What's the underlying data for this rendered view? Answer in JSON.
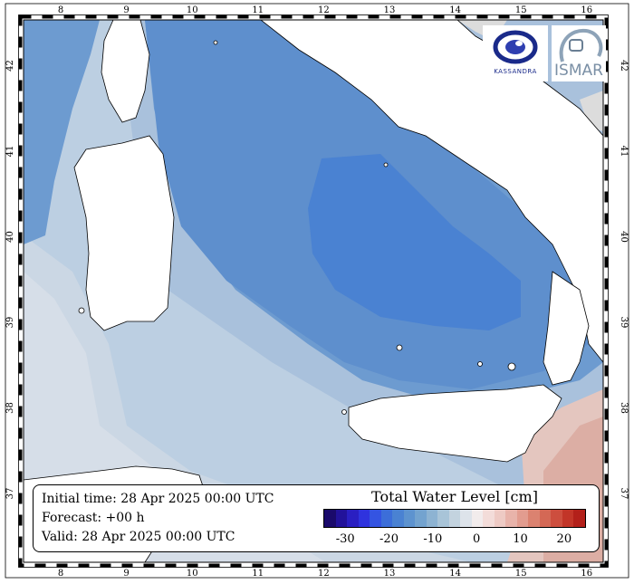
{
  "map": {
    "lon_ticks": [
      "8",
      "9",
      "10",
      "11",
      "12",
      "13",
      "14",
      "15",
      "16"
    ],
    "lat_ticks": [
      "37",
      "38",
      "39",
      "40",
      "41",
      "42"
    ]
  },
  "info": {
    "initial_time": "Initial time: 28 Apr 2025 00:00 UTC",
    "forecast": "Forecast: +00 h",
    "valid": "Valid: 28 Apr 2025 00:00 UTC"
  },
  "colorbar": {
    "title": "Total Water Level [cm]",
    "tick_labels": [
      "-30",
      "-20",
      "-10",
      "0",
      "10",
      "20"
    ],
    "colors": [
      "#1a0a6b",
      "#22129a",
      "#2a1fc2",
      "#2f33de",
      "#3454e2",
      "#3c6ed9",
      "#4a82d2",
      "#5d93cf",
      "#73a3cf",
      "#8db3d2",
      "#a8c4d8",
      "#c3d3df",
      "#dde3ea",
      "#f2ecec",
      "#f3dcd9",
      "#eecac4",
      "#e8b3aa",
      "#e29c8f",
      "#db8270",
      "#d46855",
      "#cd4e3e",
      "#c23528",
      "#b3201a"
    ]
  },
  "logos": {
    "left_text": "KASSANDRA",
    "right_text": "ISMAR"
  }
}
